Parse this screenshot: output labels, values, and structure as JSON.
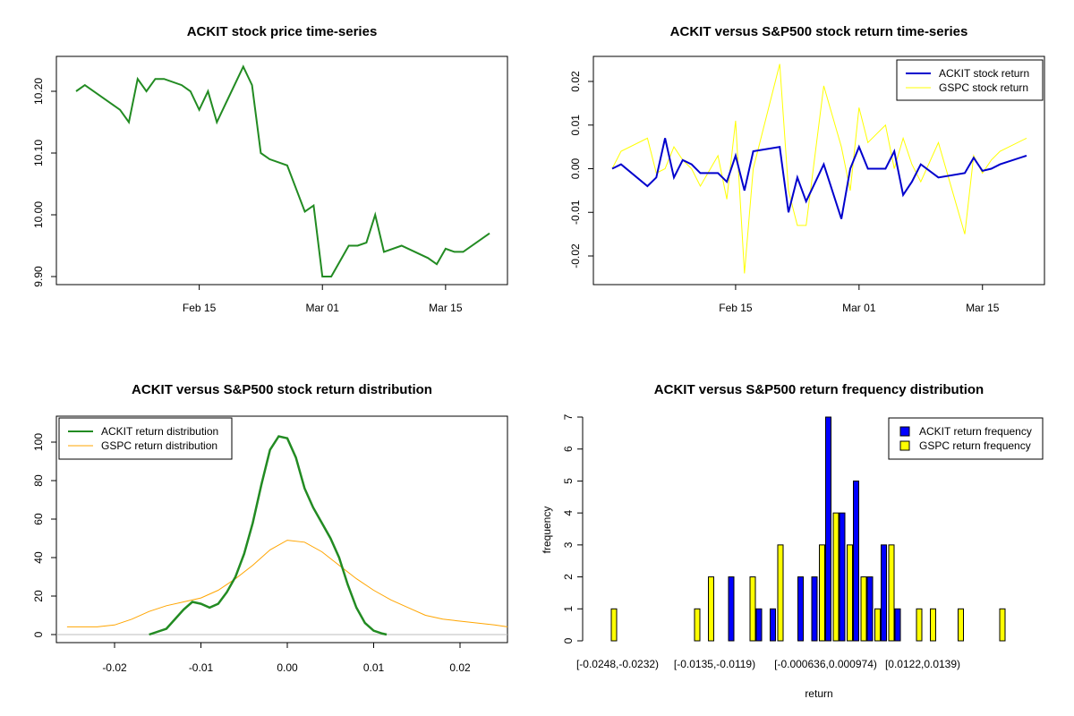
{
  "chart_data": [
    {
      "type": "line",
      "title": "ACKIT stock price time-series",
      "xlabel": "",
      "ylabel": "",
      "x_ticks": [
        "Feb 15",
        "Mar 01",
        "Mar 15"
      ],
      "y_ticks": [
        "9.90",
        "10.00",
        "10.10",
        "10.20"
      ],
      "ylim": [
        9.89,
        10.245
      ],
      "series": [
        {
          "name": "ACKIT",
          "color": "#228B22",
          "x": [
            1,
            2,
            5,
            6,
            7,
            8,
            9,
            10,
            11,
            13,
            14,
            15,
            16,
            17,
            20,
            21,
            22,
            23,
            25,
            27,
            28,
            29,
            30,
            32,
            33,
            34,
            35,
            36,
            38,
            41,
            42,
            43,
            44,
            45,
            48
          ],
          "values": [
            10.2,
            10.21,
            10.18,
            10.17,
            10.15,
            10.22,
            10.2,
            10.22,
            10.22,
            10.21,
            10.2,
            10.17,
            10.2,
            10.15,
            10.24,
            10.21,
            10.1,
            10.09,
            10.08,
            10.005,
            10.015,
            9.9,
            9.9,
            9.95,
            9.95,
            9.955,
            10.0,
            9.94,
            9.95,
            9.93,
            9.92,
            9.945,
            9.94,
            9.94,
            9.97
          ]
        }
      ]
    },
    {
      "type": "line",
      "title": "ACKIT versus S&P500 stock return time-series",
      "xlabel": "",
      "ylabel": "",
      "x_ticks": [
        "Feb 15",
        "Mar 01",
        "Mar 15"
      ],
      "y_ticks": [
        "-0.02",
        "-0.01",
        "0.00",
        "0.01",
        "0.02"
      ],
      "ylim": [
        -0.026,
        0.025
      ],
      "legend": "top-right",
      "series": [
        {
          "name": "ACKIT stock return",
          "color": "#0000CD",
          "x": [
            1,
            2,
            5,
            6,
            7,
            8,
            9,
            10,
            11,
            13,
            14,
            15,
            16,
            17,
            20,
            21,
            22,
            23,
            25,
            27,
            28,
            29,
            30,
            32,
            33,
            34,
            35,
            36,
            38,
            41,
            42,
            43,
            44,
            45,
            48
          ],
          "values": [
            0.0,
            0.001,
            -0.004,
            -0.002,
            0.007,
            -0.002,
            0.002,
            0.001,
            -0.001,
            -0.001,
            -0.003,
            0.003,
            -0.005,
            0.004,
            0.005,
            -0.01,
            -0.002,
            -0.0075,
            0.001,
            -0.0115,
            0.0,
            0.005,
            0.0,
            0.0,
            0.004,
            -0.006,
            -0.003,
            0.001,
            -0.002,
            -0.001,
            0.0025,
            -0.0005,
            0.0,
            0.001,
            0.003
          ]
        },
        {
          "name": "GSPC stock return",
          "color": "#FFFF00",
          "x": [
            1,
            2,
            5,
            6,
            7,
            8,
            9,
            10,
            11,
            13,
            14,
            15,
            16,
            17,
            20,
            21,
            22,
            23,
            25,
            27,
            28,
            29,
            30,
            32,
            33,
            34,
            35,
            36,
            38,
            41,
            42,
            43,
            44,
            45,
            48
          ],
          "values": [
            0.0,
            0.004,
            0.007,
            -0.001,
            0.0,
            0.005,
            0.002,
            0.0,
            -0.004,
            0.003,
            -0.007,
            0.011,
            -0.024,
            0.0,
            0.024,
            -0.005,
            -0.013,
            -0.013,
            0.019,
            0.005,
            -0.005,
            0.014,
            0.006,
            0.01,
            0.0,
            0.007,
            0.001,
            -0.003,
            0.006,
            -0.015,
            0.003,
            -0.001,
            0.002,
            0.004,
            0.007
          ]
        }
      ]
    },
    {
      "type": "line",
      "title": "ACKIT versus S&P500 stock return distribution",
      "xlabel": "",
      "ylabel": "",
      "x_ticks": [
        "-0.02",
        "-0.01",
        "0.00",
        "0.01",
        "0.02"
      ],
      "y_ticks": [
        "0",
        "20",
        "40",
        "60",
        "80",
        "100"
      ],
      "xlim": [
        -0.0255,
        0.0255
      ],
      "ylim": [
        -4,
        113
      ],
      "legend": "top-left",
      "series": [
        {
          "name": "ACKIT return distribution",
          "color": "#228B22",
          "x": [
            -0.016,
            -0.014,
            -0.012,
            -0.011,
            -0.01,
            -0.009,
            -0.008,
            -0.007,
            -0.006,
            -0.005,
            -0.004,
            -0.003,
            -0.002,
            -0.001,
            0.0,
            0.001,
            0.002,
            0.003,
            0.004,
            0.005,
            0.006,
            0.007,
            0.008,
            0.009,
            0.01,
            0.011,
            0.0115
          ],
          "values": [
            0,
            3,
            13,
            17,
            16,
            14,
            16,
            22,
            30,
            42,
            58,
            78,
            96,
            103,
            102,
            92,
            76,
            66,
            58,
            50,
            40,
            26,
            14,
            6,
            2,
            0.5,
            0
          ]
        },
        {
          "name": "GSPC return distribution",
          "color": "#FFA500",
          "x": [
            -0.0255,
            -0.022,
            -0.02,
            -0.018,
            -0.016,
            -0.014,
            -0.012,
            -0.01,
            -0.008,
            -0.006,
            -0.004,
            -0.002,
            0.0,
            0.002,
            0.004,
            0.006,
            0.008,
            0.01,
            0.012,
            0.014,
            0.016,
            0.018,
            0.02,
            0.022,
            0.024,
            0.0255
          ],
          "values": [
            4,
            4,
            5,
            8,
            12,
            15,
            17,
            19,
            23,
            29,
            36,
            44,
            49,
            48,
            43,
            36,
            29,
            23,
            18,
            14,
            10,
            8,
            7,
            6,
            5,
            4
          ]
        }
      ]
    },
    {
      "type": "bar",
      "title": "ACKIT versus S&P500 return frequency distribution",
      "xlabel": "return",
      "ylabel": "frequency",
      "tick_labels": [
        "[-0.0248,-0.0232)",
        "[-0.0135,-0.0119)",
        "[-0.000636,0.000974)",
        "[0.0122,0.0139)"
      ],
      "tick_label_bins": [
        0,
        7,
        15,
        22
      ],
      "y_ticks": [
        "0",
        "1",
        "2",
        "3",
        "4",
        "5",
        "6",
        "7"
      ],
      "ylim": [
        0,
        7
      ],
      "legend": "top-right",
      "series": [
        {
          "name": "ACKIT return frequency",
          "color": "#0000FF",
          "values": [
            0,
            0,
            0,
            0,
            0,
            0,
            0,
            0,
            2,
            0,
            1,
            1,
            0,
            2,
            2,
            7,
            4,
            5,
            2,
            3,
            1,
            0,
            0,
            0,
            0,
            0,
            0,
            0,
            0,
            0
          ]
        },
        {
          "name": "GSPC return frequency",
          "color": "#FFFF00",
          "values": [
            1,
            0,
            0,
            0,
            0,
            0,
            1,
            2,
            0,
            0,
            2,
            0,
            3,
            0,
            0,
            3,
            4,
            3,
            2,
            1,
            3,
            0,
            1,
            1,
            0,
            1,
            0,
            0,
            1,
            0
          ]
        }
      ]
    }
  ]
}
